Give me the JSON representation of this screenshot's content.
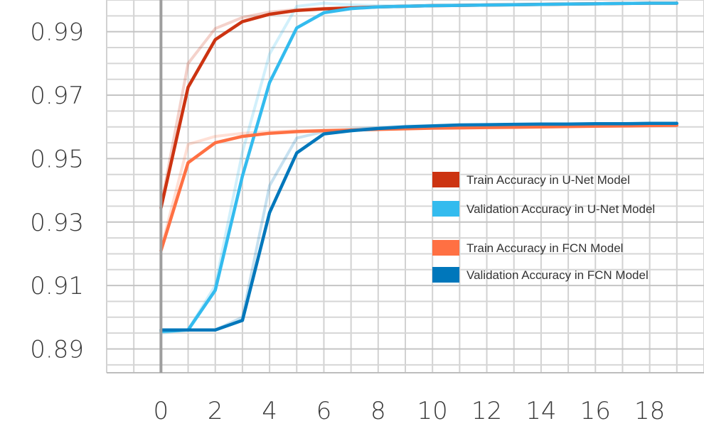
{
  "chart_data": {
    "type": "line",
    "title": "",
    "xlabel": "",
    "ylabel": "",
    "x": [
      0,
      1,
      2,
      3,
      4,
      5,
      6,
      7,
      8,
      9,
      10,
      11,
      12,
      13,
      14,
      15,
      16,
      17,
      18,
      19
    ],
    "xlim": [
      -2,
      20
    ],
    "ylim": [
      0.8825,
      1.0
    ],
    "xticks": [
      0,
      2,
      4,
      6,
      8,
      10,
      12,
      14,
      16,
      18
    ],
    "xtick_labels": [
      "0",
      "2",
      "4",
      "6",
      "8",
      "10",
      "12",
      "14",
      "16",
      "18"
    ],
    "yticks": [
      0.89,
      0.91,
      0.93,
      0.95,
      0.97,
      0.99
    ],
    "ytick_labels": [
      "0.89",
      "0.91",
      "0.93",
      "0.95",
      "0.97",
      "0.99"
    ],
    "grid": true,
    "legend_position": "center-right",
    "series": [
      {
        "name": "Train Accuracy in U-Net Model",
        "color": "#cc3311",
        "values": [
          0.9345,
          0.9725,
          0.9875,
          0.9932,
          0.9955,
          0.9967,
          0.9972,
          0.9975,
          0.9978,
          0.998,
          0.9982,
          0.9983,
          0.9984,
          0.9985,
          0.9986,
          0.9987,
          0.9988,
          0.9989,
          0.999,
          0.999
        ],
        "shadow": [
          0.935,
          0.98,
          0.991,
          0.9945,
          0.9962,
          0.997,
          0.9974,
          0.9977,
          0.9979,
          0.9981,
          0.9983,
          0.9984,
          0.9985,
          0.9986,
          0.9987,
          0.9988,
          0.9989,
          0.9989,
          0.999,
          0.999
        ]
      },
      {
        "name": "Validation Accuracy in U-Net Model",
        "color": "#33bbee",
        "values": [
          0.8955,
          0.896,
          0.9085,
          0.9445,
          0.974,
          0.9912,
          0.996,
          0.9973,
          0.9978,
          0.998,
          0.9982,
          0.9983,
          0.9984,
          0.9985,
          0.9986,
          0.9987,
          0.9988,
          0.9989,
          0.999,
          0.999
        ],
        "shadow": [
          0.895,
          0.896,
          0.91,
          0.952,
          0.983,
          0.998,
          0.999,
          0.9985,
          0.9982,
          0.9983,
          0.9984,
          0.9985,
          0.9986,
          0.9987,
          0.9988,
          0.9989,
          0.9989,
          0.999,
          0.999,
          0.999
        ]
      },
      {
        "name": "Train Accuracy in FCN Model",
        "color": "#ff7043",
        "values": [
          0.921,
          0.9487,
          0.955,
          0.957,
          0.958,
          0.9585,
          0.9588,
          0.959,
          0.9592,
          0.9594,
          0.9596,
          0.9597,
          0.9598,
          0.9599,
          0.96,
          0.9601,
          0.9602,
          0.9603,
          0.9604,
          0.9605
        ],
        "shadow": [
          0.9215,
          0.9545,
          0.957,
          0.958,
          0.9585,
          0.9588,
          0.959,
          0.9592,
          0.9594,
          0.9596,
          0.9597,
          0.9598,
          0.9599,
          0.96,
          0.9601,
          0.9602,
          0.9603,
          0.9604,
          0.9605,
          0.9605
        ]
      },
      {
        "name": "Validation Accuracy in FCN Model",
        "color": "#0077bb",
        "values": [
          0.896,
          0.896,
          0.896,
          0.899,
          0.933,
          0.9518,
          0.9578,
          0.9588,
          0.9595,
          0.96,
          0.9603,
          0.9606,
          0.9607,
          0.9608,
          0.9609,
          0.9609,
          0.961,
          0.961,
          0.9611,
          0.9611
        ],
        "shadow": [
          0.896,
          0.896,
          0.896,
          0.9,
          0.9415,
          0.9565,
          0.9585,
          0.9592,
          0.9598,
          0.9602,
          0.9604,
          0.9606,
          0.9607,
          0.9608,
          0.9609,
          0.9609,
          0.961,
          0.961,
          0.9611,
          0.9611
        ]
      }
    ]
  }
}
